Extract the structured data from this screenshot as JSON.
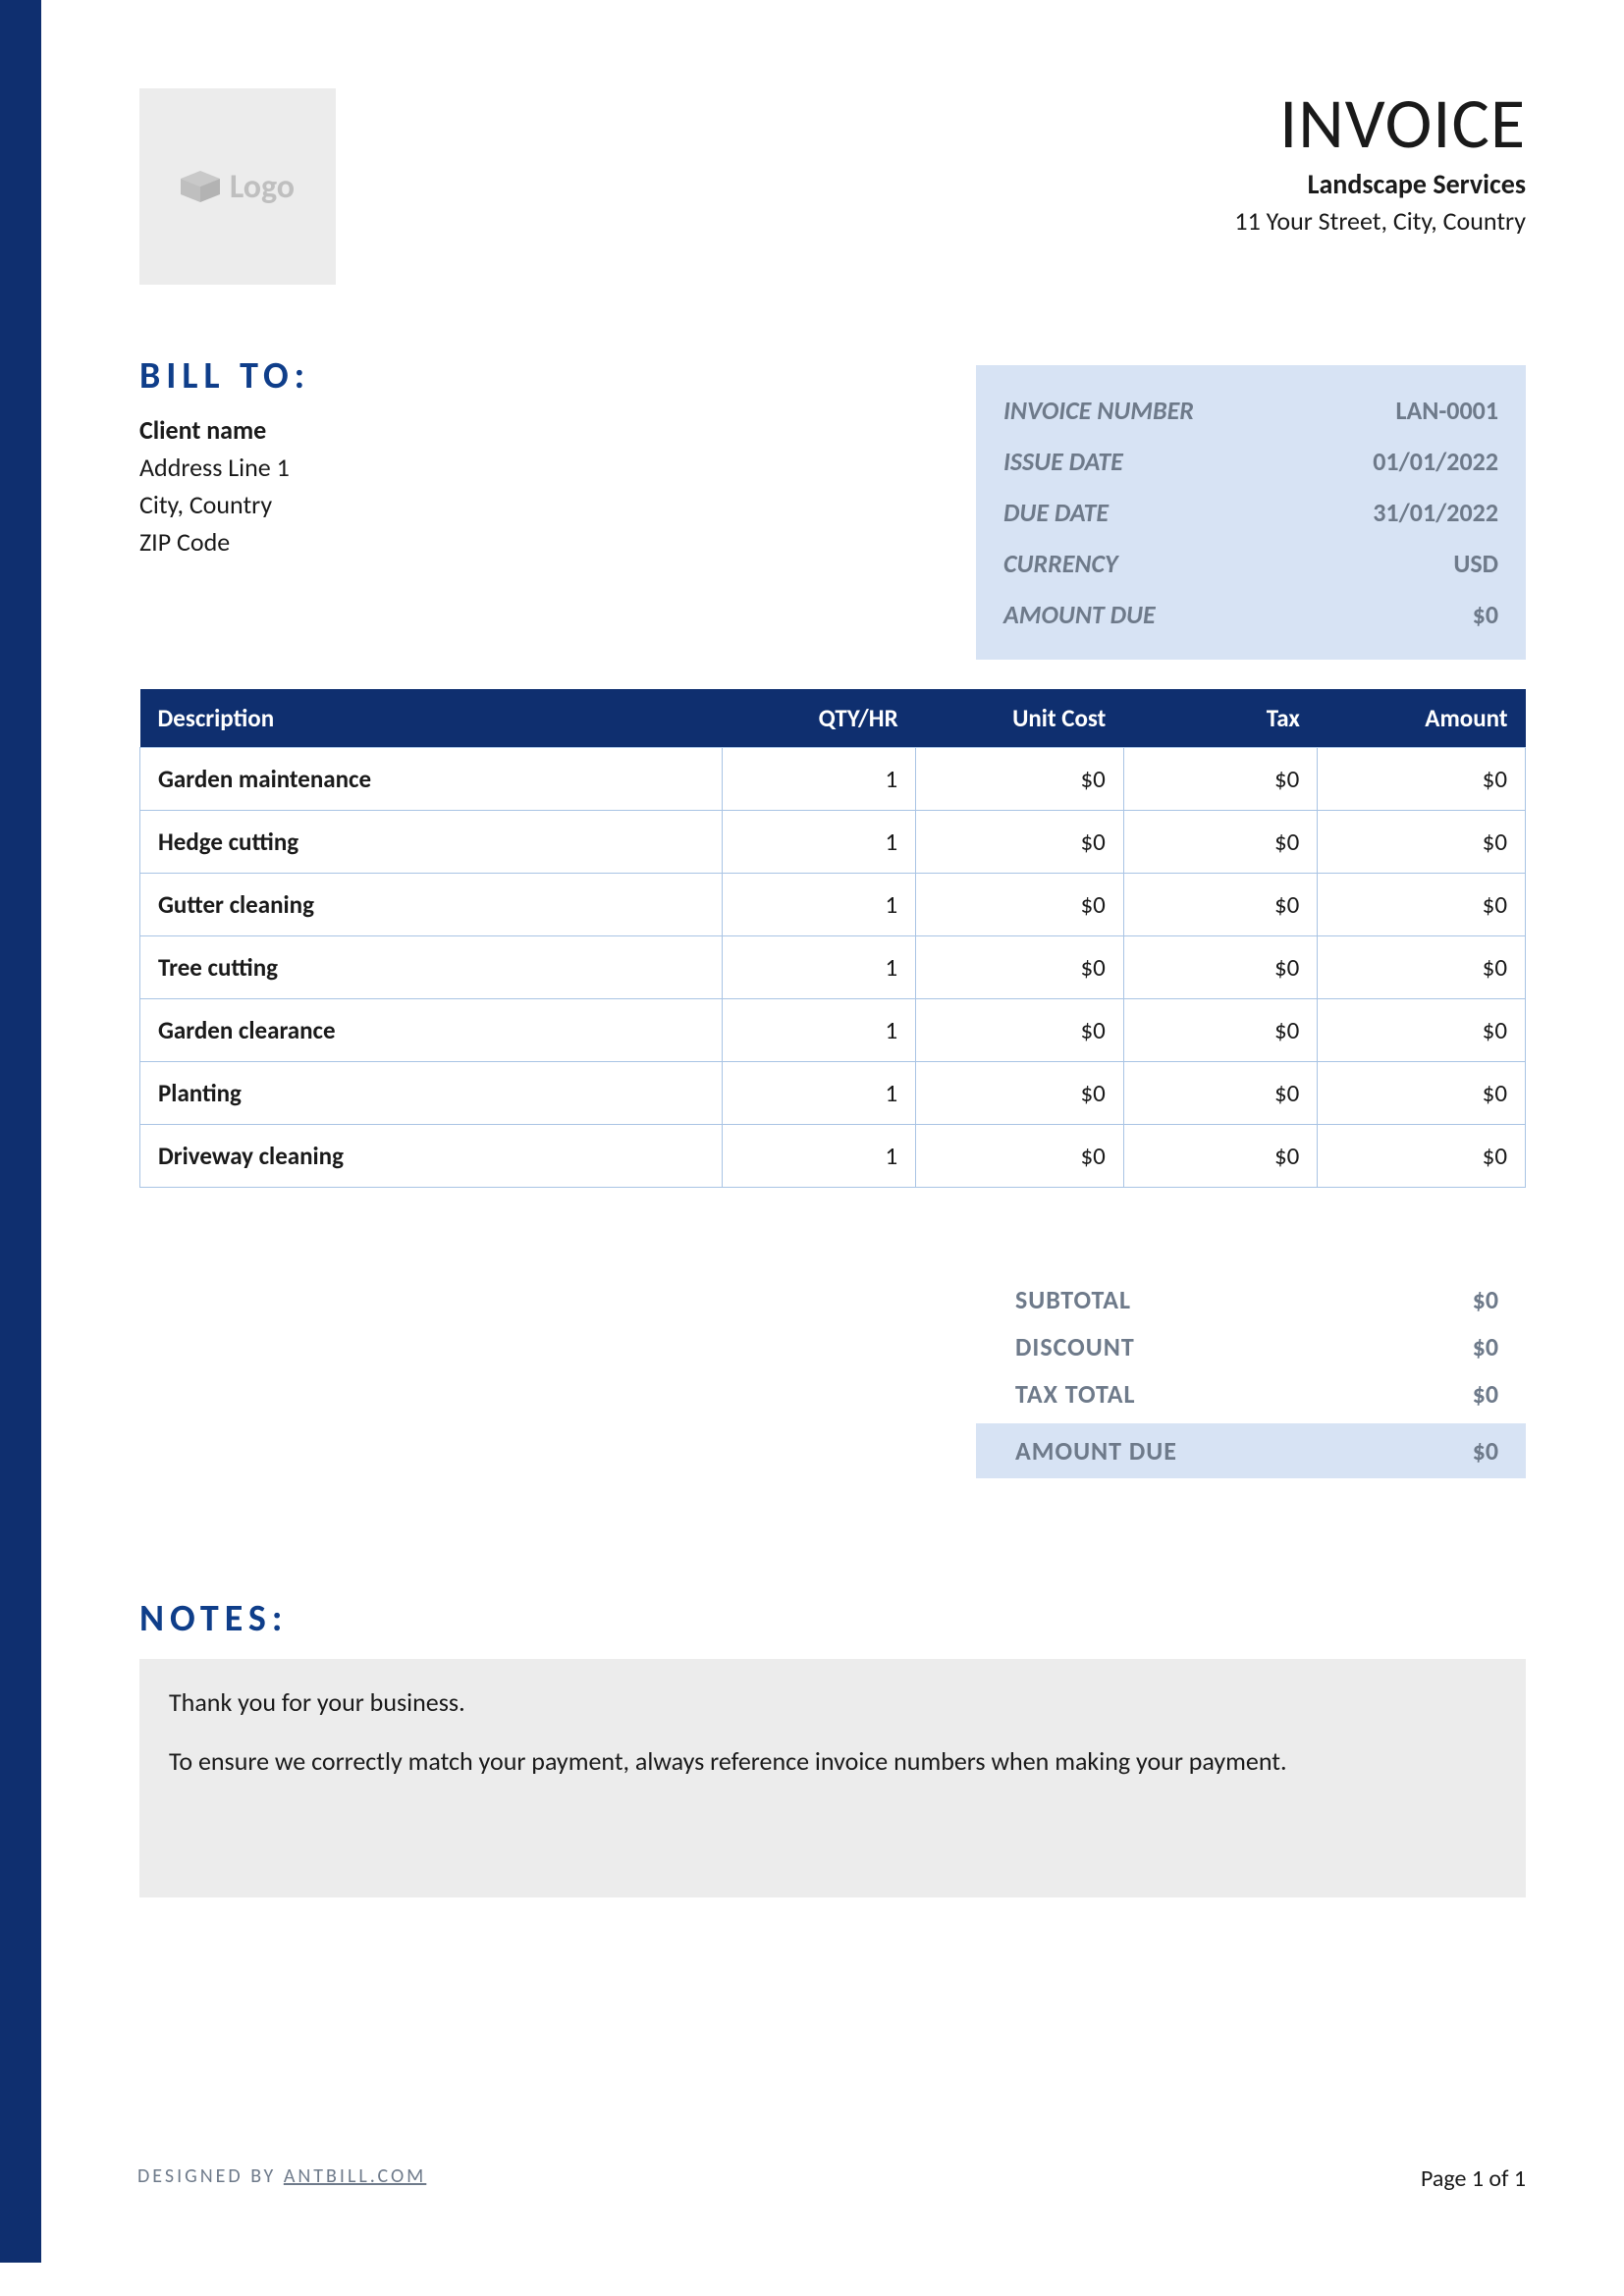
{
  "colors": {
    "accent": "#0f2f6f",
    "heading_blue": "#0f3e8a",
    "meta_bg": "#d7e3f4",
    "meta_text": "#6e7a8a",
    "logo_bg": "#ececec",
    "logo_text": "#bfbfbf",
    "table_border": "#a9c4e4",
    "body_text": "#1a1a1a",
    "white": "#ffffff"
  },
  "header": {
    "logo_label": "Logo",
    "invoice_title": "INVOICE",
    "company_name": "Landscape Services",
    "company_address": "11 Your Street, City, Country"
  },
  "bill_to": {
    "heading": "BILL TO:",
    "client_name": "Client name",
    "lines": [
      "Address Line 1",
      "City, Country",
      "ZIP Code"
    ]
  },
  "meta": {
    "rows": [
      {
        "label": "INVOICE NUMBER",
        "value": "LAN-0001"
      },
      {
        "label": "ISSUE DATE",
        "value": "01/01/2022"
      },
      {
        "label": "DUE DATE",
        "value": "31/01/2022"
      },
      {
        "label": "CURRENCY",
        "value": "USD"
      },
      {
        "label": "AMOUNT DUE",
        "value": "$0"
      }
    ]
  },
  "items": {
    "columns": [
      "Description",
      "QTY/HR",
      "Unit Cost",
      "Tax",
      "Amount"
    ],
    "rows": [
      {
        "desc": "Garden maintenance",
        "qty": "1",
        "unit": "$0",
        "tax": "$0",
        "amount": "$0"
      },
      {
        "desc": "Hedge cutting",
        "qty": "1",
        "unit": "$0",
        "tax": "$0",
        "amount": "$0"
      },
      {
        "desc": "Gutter cleaning",
        "qty": "1",
        "unit": "$0",
        "tax": "$0",
        "amount": "$0"
      },
      {
        "desc": "Tree cutting",
        "qty": "1",
        "unit": "$0",
        "tax": "$0",
        "amount": "$0"
      },
      {
        "desc": "Garden clearance",
        "qty": "1",
        "unit": "$0",
        "tax": "$0",
        "amount": "$0"
      },
      {
        "desc": "Planting",
        "qty": "1",
        "unit": "$0",
        "tax": "$0",
        "amount": "$0"
      },
      {
        "desc": "Driveway cleaning",
        "qty": "1",
        "unit": "$0",
        "tax": "$0",
        "amount": "$0"
      }
    ]
  },
  "totals": {
    "rows": [
      {
        "label": "SUBTOTAL",
        "value": "$0"
      },
      {
        "label": "DISCOUNT",
        "value": "$0"
      },
      {
        "label": "TAX TOTAL",
        "value": "$0"
      }
    ],
    "due": {
      "label": "AMOUNT DUE",
      "value": "$0"
    }
  },
  "notes": {
    "heading": "NOTES:",
    "paragraphs": [
      "Thank you for your business.",
      "To ensure we correctly match your payment, always reference invoice numbers when making your payment."
    ]
  },
  "footer": {
    "designed_prefix": "DESIGNED BY ",
    "designed_link": "ANTBILL.COM",
    "page": "Page 1 of 1"
  }
}
